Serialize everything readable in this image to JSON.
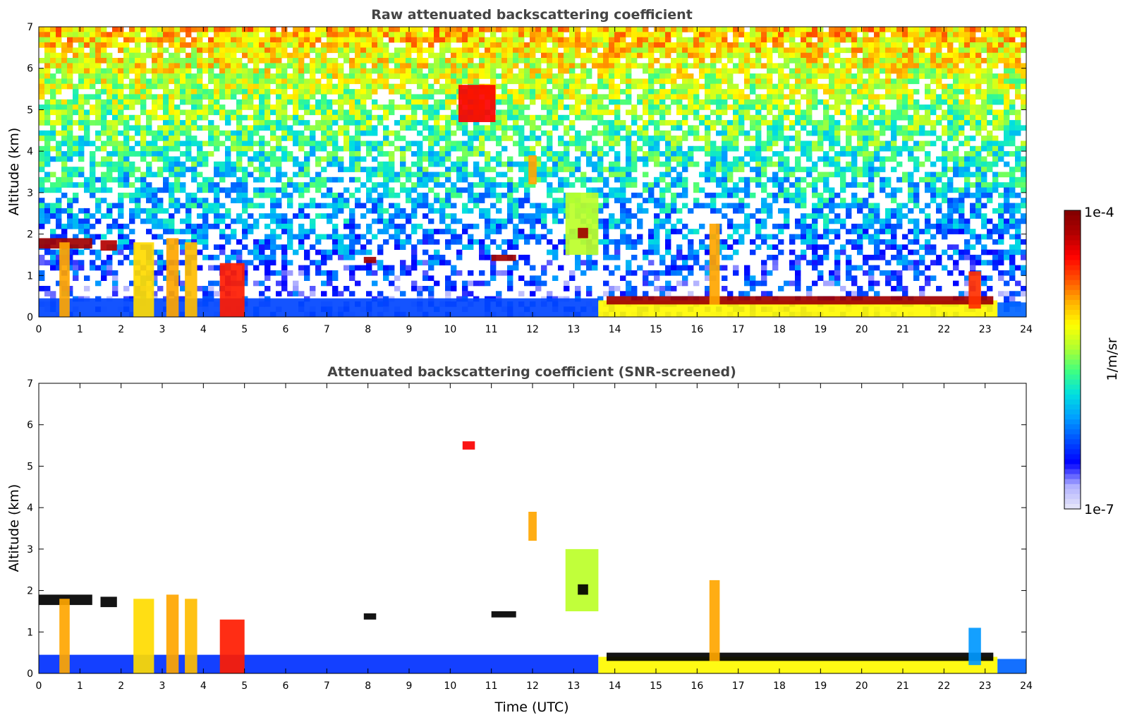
{
  "chart_data": [
    {
      "type": "heatmap",
      "title": "Raw attenuated backscattering coefficient",
      "xlabel": "",
      "ylabel": "Altitude (km)",
      "xlim": [
        0,
        24
      ],
      "ylim": [
        0,
        7
      ],
      "xticks": [
        "0",
        "1",
        "2",
        "3",
        "4",
        "5",
        "6",
        "7",
        "8",
        "9",
        "10",
        "11",
        "12",
        "13",
        "14",
        "15",
        "16",
        "17",
        "18",
        "19",
        "20",
        "21",
        "22",
        "23",
        "24"
      ],
      "yticks": [
        "0",
        "1",
        "2",
        "3",
        "4",
        "5",
        "6",
        "7"
      ],
      "noise": "full",
      "layers": [
        {
          "x0": 0.0,
          "x1": 13.6,
          "y0": 0.0,
          "y1": 0.45,
          "level": 0.22
        },
        {
          "x0": 13.6,
          "x1": 23.3,
          "y0": 0.0,
          "y1": 0.4,
          "level": 0.62
        },
        {
          "x0": 23.3,
          "x1": 24.0,
          "y0": 0.0,
          "y1": 0.35,
          "level": 0.25
        },
        {
          "x0": 13.8,
          "x1": 23.2,
          "y0": 0.3,
          "y1": 0.5,
          "level": 0.95
        },
        {
          "x0": 0.0,
          "x1": 1.3,
          "y0": 1.65,
          "y1": 1.9,
          "level": 0.95
        },
        {
          "x0": 1.5,
          "x1": 1.9,
          "y0": 1.6,
          "y1": 1.85,
          "level": 0.92
        },
        {
          "x0": 0.5,
          "x1": 0.75,
          "y0": 0.0,
          "y1": 1.8,
          "level": 0.7
        },
        {
          "x0": 2.3,
          "x1": 2.8,
          "y0": 0.0,
          "y1": 1.8,
          "level": 0.65
        },
        {
          "x0": 3.1,
          "x1": 3.4,
          "y0": 0.0,
          "y1": 1.9,
          "level": 0.7
        },
        {
          "x0": 3.55,
          "x1": 3.85,
          "y0": 0.0,
          "y1": 1.8,
          "level": 0.68
        },
        {
          "x0": 4.4,
          "x1": 5.0,
          "y0": 0.0,
          "y1": 1.3,
          "level": 0.82
        },
        {
          "x0": 11.0,
          "x1": 11.6,
          "y0": 1.35,
          "y1": 1.5,
          "level": 0.95
        },
        {
          "x0": 7.9,
          "x1": 8.2,
          "y0": 1.3,
          "y1": 1.45,
          "level": 0.95
        },
        {
          "x0": 11.9,
          "x1": 12.1,
          "y0": 3.2,
          "y1": 3.9,
          "level": 0.7
        },
        {
          "x0": 12.8,
          "x1": 13.6,
          "y0": 1.5,
          "y1": 3.0,
          "level": 0.55
        },
        {
          "x0": 13.1,
          "x1": 13.35,
          "y0": 1.9,
          "y1": 2.15,
          "level": 0.95
        },
        {
          "x0": 16.3,
          "x1": 16.55,
          "y0": 0.3,
          "y1": 2.25,
          "level": 0.7
        },
        {
          "x0": 22.6,
          "x1": 22.9,
          "y0": 0.2,
          "y1": 1.1,
          "level": 0.8
        },
        {
          "x0": 10.2,
          "x1": 11.1,
          "y0": 4.7,
          "y1": 5.6,
          "level": 0.85
        }
      ]
    },
    {
      "type": "heatmap",
      "title": "Attenuated backscattering coefficient (SNR-screened)",
      "xlabel": "Time (UTC)",
      "ylabel": "Altitude (km)",
      "xlim": [
        0,
        24
      ],
      "ylim": [
        0,
        7
      ],
      "xticks": [
        "0",
        "1",
        "2",
        "3",
        "4",
        "5",
        "6",
        "7",
        "8",
        "9",
        "10",
        "11",
        "12",
        "13",
        "14",
        "15",
        "16",
        "17",
        "18",
        "19",
        "20",
        "21",
        "22",
        "23",
        "24"
      ],
      "yticks": [
        "0",
        "1",
        "2",
        "3",
        "4",
        "5",
        "6",
        "7"
      ],
      "noise": "screened",
      "layers": [
        {
          "x0": 0.0,
          "x1": 13.6,
          "y0": 0.0,
          "y1": 0.45,
          "level": 0.2
        },
        {
          "x0": 13.6,
          "x1": 23.3,
          "y0": 0.0,
          "y1": 0.4,
          "level": 0.62
        },
        {
          "x0": 23.3,
          "x1": 24.0,
          "y0": 0.0,
          "y1": 0.35,
          "level": 0.25
        },
        {
          "x0": 13.8,
          "x1": 23.2,
          "y0": 0.3,
          "y1": 0.5,
          "level": 0.05
        },
        {
          "x0": 0.0,
          "x1": 1.3,
          "y0": 1.65,
          "y1": 1.9,
          "level": 0.05
        },
        {
          "x0": 1.5,
          "x1": 1.9,
          "y0": 1.6,
          "y1": 1.85,
          "level": 0.05
        },
        {
          "x0": 0.5,
          "x1": 0.75,
          "y0": 0.0,
          "y1": 1.8,
          "level": 0.7
        },
        {
          "x0": 2.3,
          "x1": 2.8,
          "y0": 0.0,
          "y1": 1.8,
          "level": 0.65
        },
        {
          "x0": 3.1,
          "x1": 3.4,
          "y0": 0.0,
          "y1": 1.9,
          "level": 0.7
        },
        {
          "x0": 3.55,
          "x1": 3.85,
          "y0": 0.0,
          "y1": 1.8,
          "level": 0.68
        },
        {
          "x0": 4.4,
          "x1": 5.0,
          "y0": 0.0,
          "y1": 1.3,
          "level": 0.82
        },
        {
          "x0": 11.0,
          "x1": 11.6,
          "y0": 1.35,
          "y1": 1.5,
          "level": 0.05
        },
        {
          "x0": 7.9,
          "x1": 8.2,
          "y0": 1.3,
          "y1": 1.45,
          "level": 0.05
        },
        {
          "x0": 11.9,
          "x1": 12.1,
          "y0": 3.2,
          "y1": 3.9,
          "level": 0.7
        },
        {
          "x0": 12.8,
          "x1": 13.6,
          "y0": 1.5,
          "y1": 3.0,
          "level": 0.55
        },
        {
          "x0": 13.1,
          "x1": 13.35,
          "y0": 1.9,
          "y1": 2.15,
          "level": 0.05
        },
        {
          "x0": 16.3,
          "x1": 16.55,
          "y0": 0.3,
          "y1": 2.25,
          "level": 0.7
        },
        {
          "x0": 22.6,
          "x1": 22.9,
          "y0": 0.2,
          "y1": 1.1,
          "level": 0.3
        },
        {
          "x0": 10.3,
          "x1": 10.6,
          "y0": 5.4,
          "y1": 5.6,
          "level": 0.85
        }
      ]
    }
  ],
  "colorbar": {
    "label": "1/m/sr",
    "max_label": "1e-4",
    "min_label": "1e-7",
    "colors": [
      "#e8e8f8",
      "#b0b0ff",
      "#0000ff",
      "#0050ff",
      "#00a0ff",
      "#00e0e0",
      "#40ff80",
      "#b0ff30",
      "#ffff00",
      "#ffb000",
      "#ff5000",
      "#ff0000",
      "#b00000",
      "#800000"
    ]
  }
}
